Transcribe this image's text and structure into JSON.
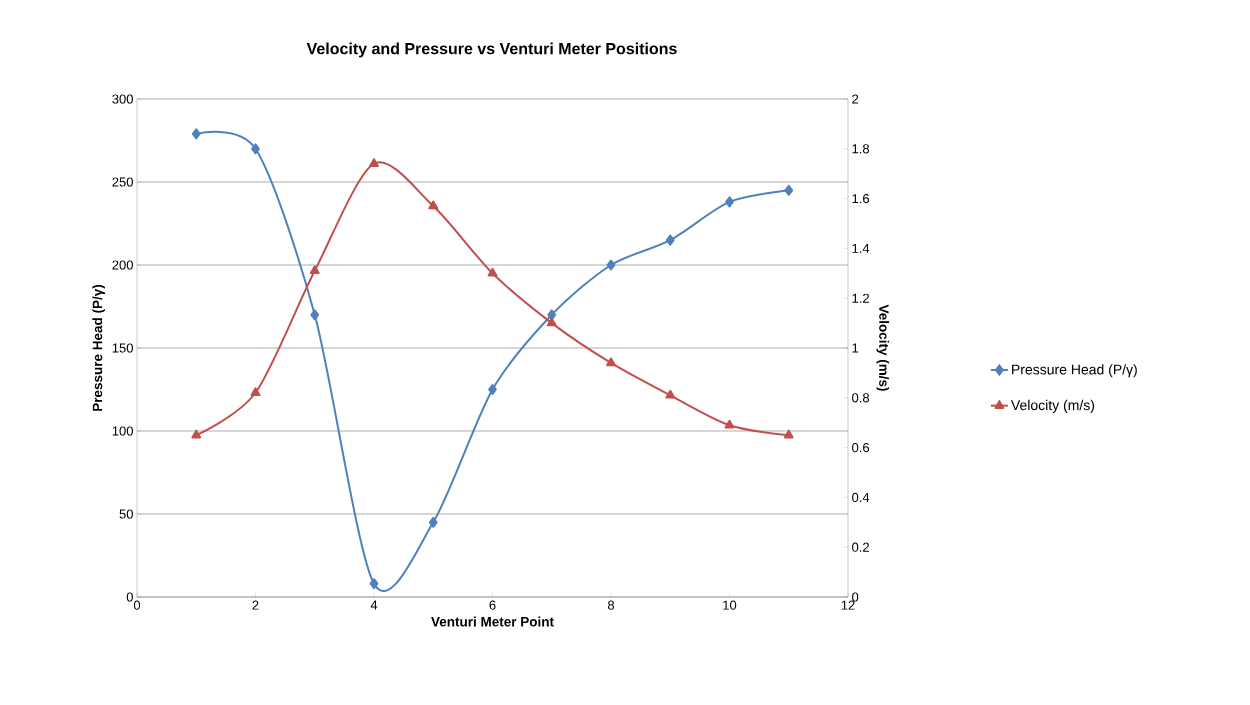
{
  "chart_data": {
    "type": "line",
    "title": "Velocity and Pressure vs Venturi Meter Positions",
    "xlabel": "Venturi Meter Point",
    "ylabel": "Pressure Head (P/γ)",
    "y2label": "Velocity (m/s)",
    "x": [
      1,
      2,
      3,
      4,
      5,
      6,
      7,
      8,
      9,
      10,
      11
    ],
    "series": [
      {
        "name": "Pressure Head (P/γ)",
        "color": "#4f81bd",
        "marker": "diamond",
        "values": [
          279,
          270,
          170,
          8,
          45,
          125,
          170,
          200,
          215,
          238,
          245
        ]
      },
      {
        "name": "Velocity (m/s)",
        "color": "#c0504d",
        "marker": "triangle",
        "axis": "y2",
        "values": [
          0.65,
          0.82,
          1.31,
          1.74,
          1.57,
          1.3,
          1.1,
          0.94,
          0.81,
          0.69,
          0.65
        ]
      }
    ],
    "xlim": [
      0,
      12
    ],
    "xticks": [
      0,
      2,
      4,
      6,
      8,
      10,
      12
    ],
    "ylim": [
      0,
      300
    ],
    "yticks": [
      0,
      50,
      100,
      150,
      200,
      250,
      300
    ],
    "y2lim": [
      0,
      2
    ],
    "y2ticks": [
      0,
      0.2,
      0.4,
      0.6,
      0.8,
      1,
      1.2,
      1.4,
      1.6,
      1.8,
      2
    ],
    "grid": "y",
    "legend": "right"
  }
}
